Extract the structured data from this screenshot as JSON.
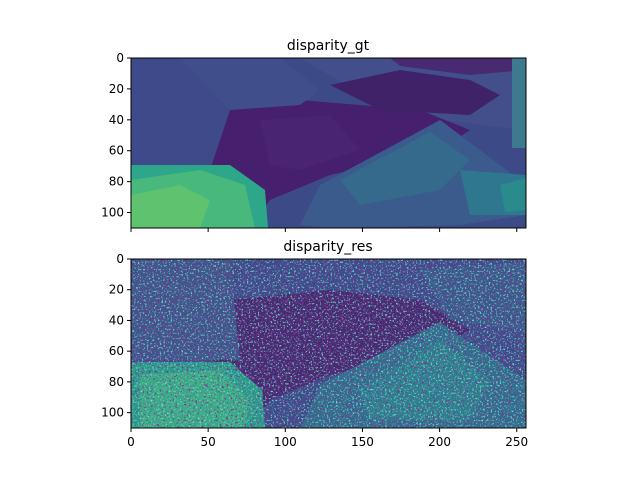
{
  "chart_data": [
    {
      "type": "heatmap",
      "title": "disparity_gt",
      "colormap": "viridis",
      "xlim": [
        0,
        256
      ],
      "ylim": [
        110,
        0
      ],
      "xticks": [
        0,
        50,
        100,
        150,
        200,
        250
      ],
      "xtick_labels_visible": false,
      "yticks": [
        0,
        20,
        40,
        60,
        80,
        100
      ],
      "grid": false
    },
    {
      "type": "heatmap",
      "title": "disparity_res",
      "colormap": "viridis",
      "xlim": [
        0,
        256
      ],
      "ylim": [
        110,
        0
      ],
      "xticks": [
        0,
        50,
        100,
        150,
        200,
        250
      ],
      "xtick_labels_visible": true,
      "yticks": [
        0,
        20,
        40,
        60,
        80,
        100
      ],
      "grid": false
    }
  ]
}
